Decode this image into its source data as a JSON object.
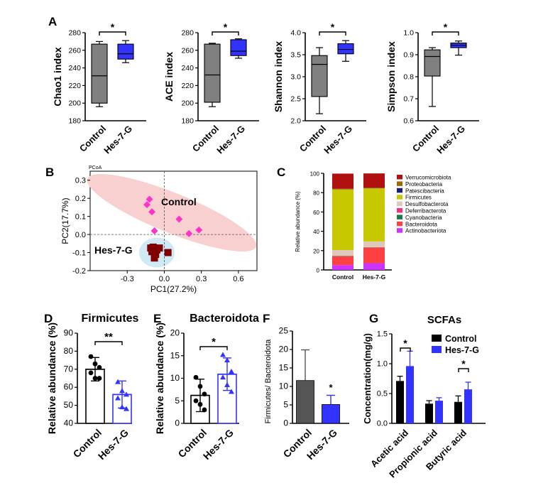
{
  "panel_labels": {
    "A": "A",
    "B": "B",
    "C": "C",
    "D": "D",
    "E": "E",
    "F": "F",
    "G": "G"
  },
  "chart_data": [
    {
      "id": "A1",
      "type": "boxplot",
      "ylabel": "Chao1 index",
      "ylim": [
        180,
        280
      ],
      "yticks": [
        "180",
        "200",
        "220",
        "240",
        "260",
        "280"
      ],
      "categories": [
        "Control",
        "Hes-7-G"
      ],
      "significance": "*",
      "boxes": [
        {
          "min": 196,
          "q1": 200,
          "median": 231,
          "q3": 267,
          "max": 270,
          "color": "#808080"
        },
        {
          "min": 246,
          "q1": 250,
          "median": 256,
          "q3": 267,
          "max": 271,
          "color": "#3333ff"
        }
      ]
    },
    {
      "id": "A2",
      "type": "boxplot",
      "ylabel": "ACE index",
      "ylim": [
        180,
        280
      ],
      "yticks": [
        "180",
        "200",
        "220",
        "240",
        "260",
        "280"
      ],
      "categories": [
        "Control",
        "Hes-7-G"
      ],
      "significance": "*",
      "boxes": [
        {
          "min": 196,
          "q1": 201,
          "median": 232,
          "q3": 267,
          "max": 268,
          "color": "#808080"
        },
        {
          "min": 251,
          "q1": 254,
          "median": 259,
          "q3": 272,
          "max": 273,
          "color": "#3333ff"
        }
      ]
    },
    {
      "id": "A3",
      "type": "boxplot",
      "ylabel": "Shannon index",
      "ylim": [
        2.0,
        4.0
      ],
      "yticks": [
        "2.0",
        "2.5",
        "3.0",
        "3.5",
        "4.0"
      ],
      "categories": [
        "Control",
        "Hes-7-G"
      ],
      "significance": "*",
      "boxes": [
        {
          "min": 2.16,
          "q1": 2.55,
          "median": 3.28,
          "q3": 3.48,
          "max": 3.66,
          "color": "#808080"
        },
        {
          "min": 3.35,
          "q1": 3.52,
          "median": 3.62,
          "q3": 3.75,
          "max": 3.82,
          "color": "#3333ff"
        }
      ]
    },
    {
      "id": "A4",
      "type": "boxplot",
      "ylabel": "Simpson index",
      "ylim": [
        0.6,
        1.0
      ],
      "yticks": [
        "0.6",
        "0.7",
        "0.8",
        "0.9",
        "1.0"
      ],
      "categories": [
        "Control",
        "Hes-7-G"
      ],
      "significance": "*",
      "boxes": [
        {
          "min": 0.665,
          "q1": 0.803,
          "median": 0.892,
          "q3": 0.922,
          "max": 0.932,
          "color": "#808080"
        },
        {
          "min": 0.898,
          "q1": 0.932,
          "median": 0.943,
          "q3": 0.953,
          "max": 0.962,
          "color": "#3333ff"
        }
      ]
    },
    {
      "id": "B",
      "type": "scatter",
      "title": "PCoA",
      "xlabel": "PC1(27.2%)",
      "ylabel": "PC2(17.7%)",
      "xlim": [
        -0.6,
        0.75
      ],
      "ylim": [
        -0.2,
        0.35
      ],
      "xticks": [
        "-0.3",
        "0.0",
        "0.3",
        "0.6"
      ],
      "yticks": [
        "-0.2",
        "-0.1",
        "0.0",
        "0.1",
        "0.2",
        "0.3"
      ],
      "series": [
        {
          "name": "Control",
          "color": "#ff33cc",
          "marker": "diamond",
          "x": [
            -0.12,
            -0.14,
            -0.1,
            0.12,
            0.2,
            0.28,
            -0.08
          ],
          "y": [
            0.195,
            0.165,
            0.125,
            0.085,
            0.005,
            0.025,
            0.02
          ]
        },
        {
          "name": "Hes-7-G",
          "color": "#800000",
          "marker": "square",
          "x": [
            -0.11,
            -0.09,
            -0.06,
            -0.04,
            -0.1,
            -0.07,
            0.03,
            -0.08
          ],
          "y": [
            -0.075,
            -0.07,
            -0.085,
            -0.075,
            -0.095,
            -0.11,
            -0.1,
            -0.13
          ]
        }
      ],
      "ellipses": [
        {
          "series": "Control",
          "color": "#f9d0d0"
        },
        {
          "series": "Hes-7-G",
          "color": "#cfeaf5"
        }
      ]
    },
    {
      "id": "C",
      "type": "stacked_bar",
      "ylabel": "Relative abundance (%)",
      "ylim": [
        0,
        100
      ],
      "yticks": [
        "0",
        "20",
        "40",
        "60",
        "80",
        "100"
      ],
      "categories": [
        "Control",
        "Hes-7-G"
      ],
      "series": [
        {
          "name": "Actinobacteriota",
          "color": "#cc33ff",
          "values": [
            5,
            7
          ]
        },
        {
          "name": "Bacteroidota",
          "color": "#ff4040",
          "values": [
            9,
            16
          ]
        },
        {
          "name": "Cyanobacteria",
          "color": "#1a7a4c",
          "values": [
            0.3,
            0.3
          ]
        },
        {
          "name": "Deferribacterota",
          "color": "#f0337a",
          "values": [
            0.3,
            0.3
          ]
        },
        {
          "name": "Desulfobacterota",
          "color": "#e0c8b8",
          "values": [
            6,
            6
          ]
        },
        {
          "name": "Firmicutes",
          "color": "#c8c800",
          "values": [
            63,
            55
          ]
        },
        {
          "name": "Patescibacteria",
          "color": "#1a1a80",
          "values": [
            0.2,
            0.2
          ]
        },
        {
          "name": "Proteobacteria",
          "color": "#9c6a00",
          "values": [
            0.2,
            0.2
          ]
        },
        {
          "name": "Verrucomicrobiota",
          "color": "#b01010",
          "values": [
            15.7,
            14.9
          ]
        }
      ],
      "legend_order": [
        "Verrucomicrobiota",
        "Proteobacteria",
        "Patescibacteria",
        "Firmicutes",
        "Desulfobacterota",
        "Deferribacterota",
        "Cyanobacteria",
        "Bacteroidota",
        "Actinobacteriota"
      ]
    },
    {
      "id": "D",
      "type": "bar",
      "title": "Firmicutes",
      "ylabel": "Relative abundance (%)",
      "ylim": [
        40,
        90
      ],
      "yticks": [
        "40",
        "50",
        "60",
        "70",
        "80",
        "90"
      ],
      "categories": [
        "Control",
        "Hes-7-G"
      ],
      "significance": "**",
      "values": [
        70,
        56
      ],
      "errors": [
        6.5,
        7.5
      ],
      "colors": [
        "#000000",
        "#3333ff"
      ],
      "points": [
        [
          77,
          73,
          71,
          68,
          65,
          65
        ],
        [
          63,
          58,
          56,
          54,
          49,
          48
        ]
      ]
    },
    {
      "id": "E",
      "type": "bar",
      "title": "Bacteroidota",
      "ylabel": "Relative abundance (%)",
      "ylim": [
        0,
        20
      ],
      "yticks": [
        "0",
        "5",
        "10",
        "15",
        "20"
      ],
      "categories": [
        "Control",
        "Hes-7-G"
      ],
      "significance": "*",
      "values": [
        6.2,
        10.9
      ],
      "errors": [
        3.6,
        3.6
      ],
      "colors": [
        "#000000",
        "#3333ff"
      ],
      "points": [
        [
          10.2,
          8.2,
          6.5,
          5.0,
          4.2,
          3.0
        ],
        [
          15.2,
          14.0,
          11.5,
          10.2,
          8.5,
          7.0
        ]
      ]
    },
    {
      "id": "F",
      "type": "bar",
      "ylabel": "Firmicutes/ Bacteroidota",
      "ylim": [
        0,
        25
      ],
      "yticks": [
        "0",
        "5",
        "10",
        "15",
        "20",
        "25"
      ],
      "categories": [
        "Control",
        "Hes-7-G"
      ],
      "significance": "*",
      "values": [
        11.6,
        5.1
      ],
      "errors": [
        8.3,
        2.5
      ],
      "colors": [
        "#555555",
        "#3333ff"
      ]
    },
    {
      "id": "G",
      "type": "bar",
      "title": "SCFAs",
      "ylabel": "Concentration(mg/g)",
      "ylim": [
        0,
        1.5
      ],
      "yticks": [
        "0.0",
        "0.5",
        "1.0",
        "1.5"
      ],
      "categories": [
        "Acetic acid",
        "Propionic acid",
        "Butyric acid"
      ],
      "series": [
        {
          "name": "Control",
          "color": "#000000",
          "values": [
            0.71,
            0.33,
            0.36
          ],
          "errors": [
            0.08,
            0.05,
            0.1
          ]
        },
        {
          "name": "Hes-7-G",
          "color": "#3333ff",
          "values": [
            0.96,
            0.38,
            0.57
          ],
          "errors": [
            0.25,
            0.05,
            0.12
          ]
        }
      ],
      "significance": [
        {
          "category": "Acetic acid",
          "label": "*"
        },
        {
          "category": "Butyric acid",
          "label": "*"
        }
      ]
    }
  ]
}
